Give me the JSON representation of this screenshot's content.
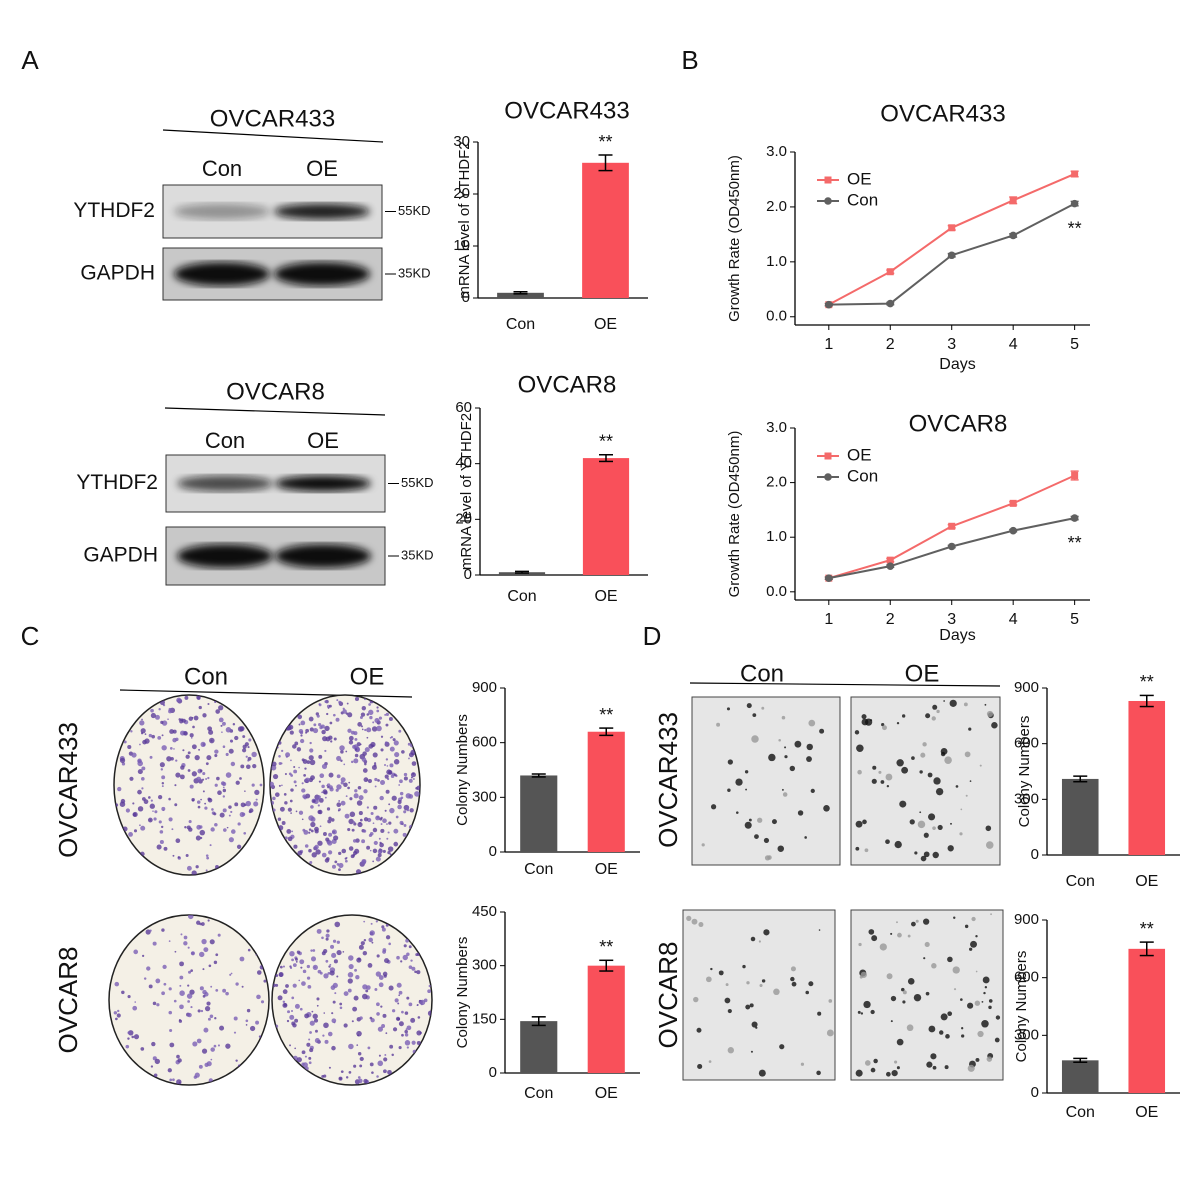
{
  "panel_labels": [
    "A",
    "B",
    "C",
    "D"
  ],
  "blots": [
    {
      "title": "OVCAR433",
      "lanes": [
        "Con",
        "OE"
      ],
      "rows": [
        {
          "protein": "YTHDF2",
          "marker": "55KD"
        },
        {
          "protein": "GAPDH",
          "marker": "35KD"
        }
      ]
    },
    {
      "title": "OVCAR8",
      "lanes": [
        "Con",
        "OE"
      ],
      "rows": [
        {
          "protein": "YTHDF2",
          "marker": "55KD"
        },
        {
          "protein": "GAPDH",
          "marker": "35KD"
        }
      ]
    }
  ],
  "colony_images": {
    "columns": [
      "Con",
      "OE"
    ],
    "rows": [
      "OVCAR433",
      "OVCAR8"
    ]
  },
  "soft_agar_images": {
    "columns": [
      "Con",
      "OE"
    ],
    "rows": [
      "OVCAR433",
      "OVCAR8"
    ]
  },
  "chart_data": [
    {
      "type": "bar",
      "title": "OVCAR433",
      "ylabel": "mRNA level of YTHDF2",
      "categories": [
        "Con",
        "OE"
      ],
      "values": [
        1,
        26
      ],
      "errors": [
        0.2,
        1.5
      ],
      "colors": [
        "#555555",
        "#f9505a"
      ],
      "ylim": [
        0,
        30
      ],
      "yticks": [
        0,
        10,
        20,
        30
      ],
      "annotation": "**"
    },
    {
      "type": "bar",
      "title": "OVCAR8",
      "ylabel": "mRNA level of YTHDF2",
      "categories": [
        "Con",
        "OE"
      ],
      "values": [
        1,
        42
      ],
      "errors": [
        0.3,
        1.2
      ],
      "colors": [
        "#555555",
        "#f9505a"
      ],
      "ylim": [
        0,
        60
      ],
      "yticks": [
        0,
        20,
        40,
        60
      ],
      "annotation": "**"
    },
    {
      "type": "line",
      "title": "OVCAR433",
      "xlabel": "Days",
      "ylabel": "Growth Rate (OD450nm)",
      "x": [
        1,
        2,
        3,
        4,
        5
      ],
      "xlim": [
        0.45,
        5.25
      ],
      "xticks": [
        1,
        2,
        3,
        4,
        5
      ],
      "ylim": [
        -0.15,
        3
      ],
      "yticks": [
        {
          "value": 0,
          "label": "0.0"
        },
        {
          "value": 1,
          "label": "1.0"
        },
        {
          "value": 2,
          "label": "2.0"
        },
        {
          "value": 3,
          "label": "3.0"
        }
      ],
      "legend": "upper left",
      "annotation": "**",
      "series": [
        {
          "name": "OE",
          "color": "#f46a6a",
          "values": [
            0.22,
            0.82,
            1.62,
            2.12,
            2.6
          ],
          "errors": [
            0.02,
            0.03,
            0.04,
            0.06,
            0.05
          ]
        },
        {
          "name": "Con",
          "color": "#606060",
          "values": [
            0.22,
            0.24,
            1.12,
            1.48,
            2.06
          ],
          "errors": [
            0.02,
            0.02,
            0.03,
            0.03,
            0.04
          ]
        }
      ]
    },
    {
      "type": "line",
      "title": "OVCAR8",
      "xlabel": "Days",
      "ylabel": "Growth Rate (OD450nm)",
      "x": [
        1,
        2,
        3,
        4,
        5
      ],
      "xlim": [
        0.45,
        5.25
      ],
      "xticks": [
        1,
        2,
        3,
        4,
        5
      ],
      "ylim": [
        -0.15,
        3
      ],
      "yticks": [
        {
          "value": 0,
          "label": "0.0"
        },
        {
          "value": 1,
          "label": "1.0"
        },
        {
          "value": 2,
          "label": "2.0"
        },
        {
          "value": 3,
          "label": "3.0"
        }
      ],
      "legend": "upper left",
      "annotation": "**",
      "series": [
        {
          "name": "OE",
          "color": "#f46a6a",
          "values": [
            0.25,
            0.58,
            1.2,
            1.62,
            2.13
          ],
          "errors": [
            0.02,
            0.03,
            0.03,
            0.03,
            0.08
          ]
        },
        {
          "name": "Con",
          "color": "#606060",
          "values": [
            0.25,
            0.47,
            0.83,
            1.12,
            1.35
          ],
          "errors": [
            0.02,
            0.02,
            0.02,
            0.02,
            0.03
          ]
        }
      ]
    },
    {
      "type": "bar",
      "ylabel": "Colony Numbers",
      "categories": [
        "Con",
        "OE"
      ],
      "values": [
        420,
        660
      ],
      "errors": [
        8,
        20
      ],
      "colors": [
        "#555555",
        "#f9505a"
      ],
      "ylim": [
        0,
        900
      ],
      "yticks": [
        0,
        300,
        600,
        900
      ],
      "annotation": "**"
    },
    {
      "type": "bar",
      "ylabel": "Colony Numbers",
      "categories": [
        "Con",
        "OE"
      ],
      "values": [
        145,
        300
      ],
      "errors": [
        12,
        15
      ],
      "colors": [
        "#555555",
        "#f9505a"
      ],
      "ylim": [
        0,
        450
      ],
      "yticks": [
        0,
        150,
        300,
        450
      ],
      "annotation": "**"
    },
    {
      "type": "bar",
      "ylabel": "Colony Numbers",
      "categories": [
        "Con",
        "OE"
      ],
      "values": [
        410,
        830
      ],
      "errors": [
        15,
        30
      ],
      "colors": [
        "#555555",
        "#f9505a"
      ],
      "ylim": [
        0,
        900
      ],
      "yticks": [
        0,
        300,
        600,
        900
      ],
      "annotation": "**"
    },
    {
      "type": "bar",
      "ylabel": "Colony Numbers",
      "categories": [
        "Con",
        "OE"
      ],
      "values": [
        170,
        750
      ],
      "errors": [
        10,
        35
      ],
      "colors": [
        "#555555",
        "#f9505a"
      ],
      "ylim": [
        0,
        900
      ],
      "yticks": [
        0,
        300,
        600,
        900
      ],
      "annotation": "**"
    }
  ]
}
